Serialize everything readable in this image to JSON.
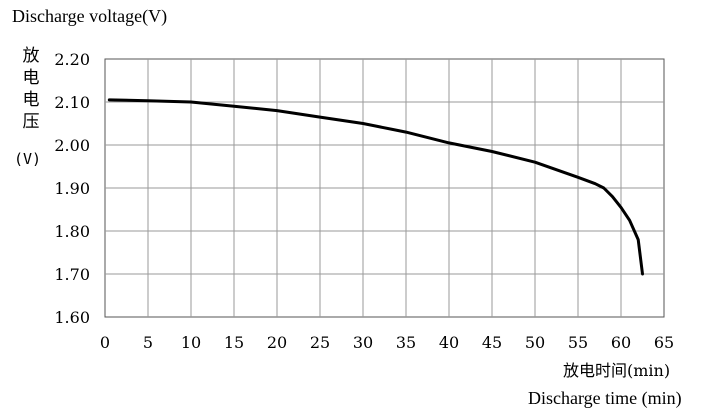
{
  "chart_data": {
    "type": "line",
    "title": "Discharge voltage(V)",
    "ylabel": "放电电压",
    "ylabel_unit": "(V)",
    "xlabel": "放电时间(min)",
    "xlabel_en": "Discharge time (min)",
    "xlim": [
      0,
      65
    ],
    "ylim": [
      1.6,
      2.2
    ],
    "xticks": [
      0,
      5,
      10,
      15,
      20,
      25,
      30,
      35,
      40,
      45,
      50,
      55,
      60,
      65
    ],
    "yticks": [
      1.6,
      1.7,
      1.8,
      1.9,
      2.0,
      2.1,
      2.2
    ],
    "xtick_labels": [
      "0",
      "5",
      "10",
      "15",
      "20",
      "25",
      "30",
      "35",
      "40",
      "45",
      "50",
      "55",
      "60",
      "65"
    ],
    "ytick_labels": [
      "1.60",
      "1.70",
      "1.80",
      "1.90",
      "2.00",
      "2.10",
      "2.20"
    ],
    "grid": true,
    "series": [
      {
        "x": [
          0.5,
          5,
          10,
          15,
          20,
          25,
          30,
          35,
          40,
          45,
          50,
          55,
          57,
          58,
          59,
          60,
          61,
          62,
          62.5
        ],
        "y": [
          2.105,
          2.103,
          2.1,
          2.09,
          2.08,
          2.065,
          2.05,
          2.03,
          2.005,
          1.985,
          1.96,
          1.925,
          1.91,
          1.9,
          1.88,
          1.855,
          1.825,
          1.78,
          1.7
        ],
        "color": "#000000"
      }
    ]
  }
}
